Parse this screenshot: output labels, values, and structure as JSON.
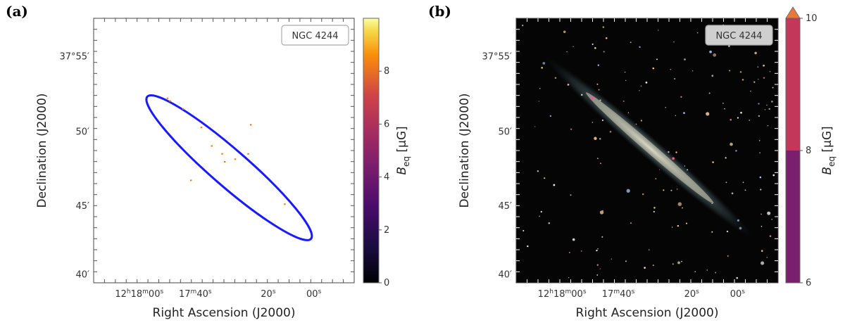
{
  "panels": {
    "a": {
      "label": "(a)"
    },
    "b": {
      "label": "(b)"
    }
  },
  "chart_data": [
    {
      "type": "heatmap",
      "panel": "(a)",
      "object_label": "NGC 4244",
      "xlabel": "Right Ascension (J2000)",
      "ylabel": "Declination (J2000)",
      "x_ticks": [
        "12h18m00s",
        "17m40s",
        "20s",
        "00s"
      ],
      "y_ticks": [
        "37°55′",
        "50′",
        "45′",
        "40′"
      ],
      "colorbar": {
        "label": "B_eq [μG]",
        "label_main": "B",
        "label_sub": "eq",
        "label_unit": "[μG]",
        "ticks": [
          0,
          2,
          4,
          6,
          8
        ],
        "range": [
          0,
          10
        ],
        "colormap": "inferno"
      },
      "ellipse_color": "#1a1aff",
      "emission_color": "#f07a0a"
    },
    {
      "type": "heatmap",
      "panel": "(b)",
      "object_label": "NGC 4244",
      "xlabel": "Right Ascension (J2000)",
      "ylabel": "Declination (J2000)",
      "x_ticks": [
        "12h18m00s",
        "17m40s",
        "20s",
        "00s"
      ],
      "y_ticks": [
        "37°55′",
        "50′",
        "45′",
        "40′"
      ],
      "background": "optical image (stars and edge-on galaxy)",
      "colorbar": {
        "label": "B_eq [μG]",
        "label_main": "B",
        "label_sub": "eq",
        "label_unit": "[μG]",
        "ticks": [
          6,
          8,
          10
        ],
        "range": [
          6,
          10
        ],
        "bins": [
          {
            "from": 6,
            "to": 8,
            "color": "#7a1e6e"
          },
          {
            "from": 8,
            "to": 10,
            "color": "#c2375a"
          }
        ],
        "extend_max_color": "#e8773a"
      }
    }
  ]
}
